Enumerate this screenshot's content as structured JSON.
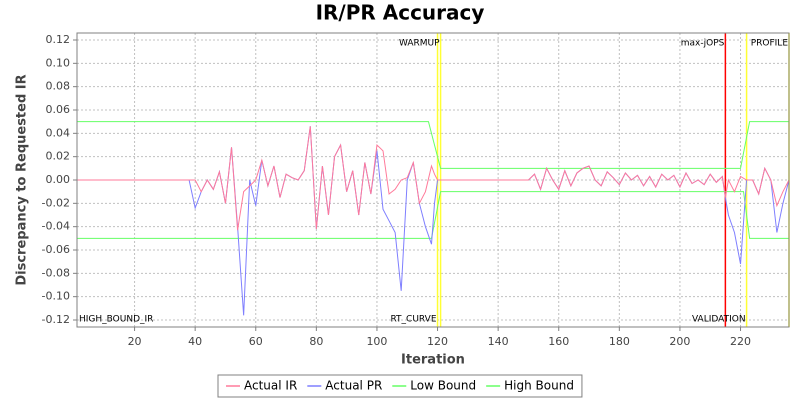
{
  "chart_data": {
    "type": "line",
    "title": "IR/PR Accuracy",
    "x_label": "Iteration",
    "y_label": "Discrepancy to Requested IR",
    "annotation": "HIGH_BOUND_IR",
    "xlim": [
      1,
      236
    ],
    "ylim": [
      -0.126,
      0.126
    ],
    "xticks": [
      20,
      40,
      60,
      80,
      100,
      120,
      140,
      160,
      180,
      200,
      220
    ],
    "yticks": [
      {
        "value": -0.12,
        "label": "-0.12"
      },
      {
        "value": -0.1,
        "label": "-0.10"
      },
      {
        "value": -0.08,
        "label": "-0.08"
      },
      {
        "value": -0.06,
        "label": "-0.06"
      },
      {
        "value": -0.04,
        "label": "-0.04"
      },
      {
        "value": -0.02,
        "label": "-0.02"
      },
      {
        "value": 0,
        "label": "0.00"
      },
      {
        "value": 0.02,
        "label": "0.02"
      },
      {
        "value": 0.04,
        "label": "0.04"
      },
      {
        "value": 0.06,
        "label": "0.06"
      },
      {
        "value": 0.08,
        "label": "0.08"
      },
      {
        "value": 0.1,
        "label": "0.10"
      },
      {
        "value": 0.12,
        "label": "0.12"
      }
    ],
    "grid": true,
    "legend": "bottom",
    "markers": [
      {
        "x": 121,
        "label": "WARMUP",
        "color": "#ffff33",
        "label_position": "top"
      },
      {
        "x": 120,
        "label": "RT_CURVE",
        "color": "#ffff33",
        "label_position": "bottom"
      },
      {
        "x": 215,
        "label": "max-jOPS",
        "color": "#ff0000",
        "label_position": "top"
      },
      {
        "x": 222,
        "label": "VALIDATION",
        "color": "#ffff33",
        "label_position": "bottom"
      },
      {
        "x": 236,
        "label": "PROFILE",
        "color": "#ffff33",
        "label_position": "top"
      }
    ],
    "x": [
      1,
      38,
      40,
      42,
      44,
      46,
      48,
      50,
      52,
      54,
      56,
      58,
      60,
      62,
      64,
      66,
      68,
      70,
      72,
      74,
      76,
      78,
      80,
      82,
      84,
      86,
      88,
      90,
      92,
      94,
      96,
      98,
      100,
      102,
      104,
      106,
      108,
      110,
      112,
      114,
      116,
      118,
      119,
      120,
      122,
      130,
      150,
      152,
      154,
      156,
      158,
      160,
      162,
      164,
      166,
      168,
      170,
      172,
      174,
      176,
      178,
      180,
      182,
      184,
      186,
      188,
      190,
      192,
      194,
      196,
      198,
      200,
      202,
      204,
      206,
      208,
      210,
      212,
      214,
      215,
      216,
      218,
      220,
      222,
      224,
      226,
      228,
      230,
      232,
      234,
      236
    ],
    "series": [
      {
        "name": "Actual IR",
        "color": "#ff7a9a",
        "values": [
          0,
          0,
          0,
          -0.01,
          0,
          -0.008,
          0.007,
          -0.02,
          0.028,
          -0.043,
          -0.01,
          -0.005,
          0,
          0.017,
          -0.005,
          0.012,
          -0.015,
          0.005,
          0.002,
          0,
          0.008,
          0.046,
          -0.042,
          0.012,
          -0.03,
          0.02,
          0.03,
          -0.01,
          0.008,
          -0.03,
          0.015,
          -0.012,
          0.03,
          0.025,
          -0.012,
          -0.008,
          0,
          0.002,
          0.015,
          -0.02,
          -0.01,
          0.012,
          0.005,
          0,
          0,
          0,
          0,
          0.005,
          -0.008,
          0.01,
          0,
          -0.008,
          0.008,
          -0.005,
          0.006,
          0.01,
          0.012,
          0,
          -0.005,
          0.007,
          0.002,
          -0.004,
          0.006,
          0,
          0.004,
          -0.005,
          0.003,
          -0.006,
          0.005,
          0,
          0.004,
          -0.006,
          0.006,
          -0.003,
          0,
          -0.004,
          0.005,
          -0.002,
          0.003,
          -0.015,
          0,
          -0.01,
          0.003,
          0,
          0,
          -0.012,
          0.01,
          0,
          -0.022,
          -0.01,
          0
        ]
      },
      {
        "name": "Actual PR",
        "color": "#7f7fff",
        "values": [
          0,
          0,
          -0.024,
          -0.01,
          0,
          -0.008,
          0.007,
          -0.02,
          0.028,
          -0.04,
          -0.116,
          0,
          -0.022,
          0.017,
          -0.005,
          0.012,
          -0.015,
          0.005,
          0.002,
          0,
          0.008,
          0.046,
          -0.042,
          0.012,
          -0.03,
          0.02,
          0.03,
          -0.01,
          0.008,
          -0.03,
          0.015,
          -0.012,
          0.025,
          -0.025,
          -0.035,
          -0.045,
          -0.095,
          0,
          0.015,
          -0.02,
          -0.04,
          -0.055,
          -0.02,
          0,
          0,
          0,
          0,
          0.005,
          -0.008,
          0.01,
          0,
          -0.008,
          0.008,
          -0.005,
          0.006,
          0.01,
          0.012,
          0,
          -0.005,
          0.007,
          0.002,
          -0.004,
          0.006,
          0,
          0.004,
          -0.005,
          0.003,
          -0.006,
          0.005,
          0,
          0.004,
          -0.006,
          0.006,
          -0.003,
          0,
          -0.004,
          0.005,
          -0.002,
          0.003,
          -0.015,
          -0.03,
          -0.045,
          -0.072,
          0,
          0,
          -0.012,
          0.01,
          0,
          -0.045,
          -0.02,
          0
        ]
      },
      {
        "name": "Low Bound",
        "color": "#66ff66",
        "x": [
          1,
          118,
          121,
          221,
          223,
          236
        ],
        "values": [
          -0.05,
          -0.05,
          -0.01,
          -0.01,
          -0.05,
          -0.05
        ]
      },
      {
        "name": "High Bound",
        "color": "#66ff66",
        "x": [
          1,
          117,
          121,
          220,
          223,
          236
        ],
        "values": [
          0.05,
          0.05,
          0.01,
          0.01,
          0.05,
          0.05
        ]
      }
    ]
  }
}
